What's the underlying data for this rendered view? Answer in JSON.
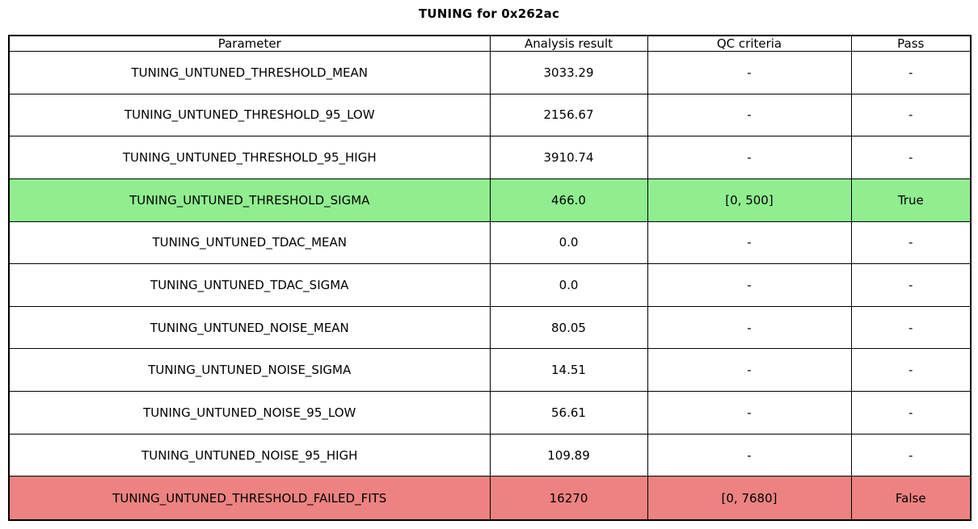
{
  "title": "TUNING for 0x262ac",
  "colors": {
    "background": "#FFFFFF",
    "border": "#000000",
    "text": "#000000",
    "pass_green": "#90EE90",
    "fail_red": "#ED8282"
  },
  "chart_data": {
    "type": "table",
    "title": "TUNING for 0x262ac",
    "columns": [
      "Parameter",
      "Analysis result",
      "QC criteria",
      "Pass"
    ],
    "rows": [
      {
        "parameter": "TUNING_UNTUNED_THRESHOLD_MEAN",
        "analysis_result": "3033.29",
        "qc_criteria": "-",
        "pass": "-",
        "highlight": "none"
      },
      {
        "parameter": "TUNING_UNTUNED_THRESHOLD_95_LOW",
        "analysis_result": "2156.67",
        "qc_criteria": "-",
        "pass": "-",
        "highlight": "none"
      },
      {
        "parameter": "TUNING_UNTUNED_THRESHOLD_95_HIGH",
        "analysis_result": "3910.74",
        "qc_criteria": "-",
        "pass": "-",
        "highlight": "none"
      },
      {
        "parameter": "TUNING_UNTUNED_THRESHOLD_SIGMA",
        "analysis_result": "466.0",
        "qc_criteria": "[0, 500]",
        "pass": "True",
        "highlight": "pass"
      },
      {
        "parameter": "TUNING_UNTUNED_TDAC_MEAN",
        "analysis_result": "0.0",
        "qc_criteria": "-",
        "pass": "-",
        "highlight": "none"
      },
      {
        "parameter": "TUNING_UNTUNED_TDAC_SIGMA",
        "analysis_result": "0.0",
        "qc_criteria": "-",
        "pass": "-",
        "highlight": "none"
      },
      {
        "parameter": "TUNING_UNTUNED_NOISE_MEAN",
        "analysis_result": "80.05",
        "qc_criteria": "-",
        "pass": "-",
        "highlight": "none"
      },
      {
        "parameter": "TUNING_UNTUNED_NOISE_SIGMA",
        "analysis_result": "14.51",
        "qc_criteria": "-",
        "pass": "-",
        "highlight": "none"
      },
      {
        "parameter": "TUNING_UNTUNED_NOISE_95_LOW",
        "analysis_result": "56.61",
        "qc_criteria": "-",
        "pass": "-",
        "highlight": "none"
      },
      {
        "parameter": "TUNING_UNTUNED_NOISE_95_HIGH",
        "analysis_result": "109.89",
        "qc_criteria": "-",
        "pass": "-",
        "highlight": "none"
      },
      {
        "parameter": "TUNING_UNTUNED_THRESHOLD_FAILED_FITS",
        "analysis_result": "16270",
        "qc_criteria": "[0, 7680]",
        "pass": "False",
        "highlight": "fail"
      }
    ]
  }
}
